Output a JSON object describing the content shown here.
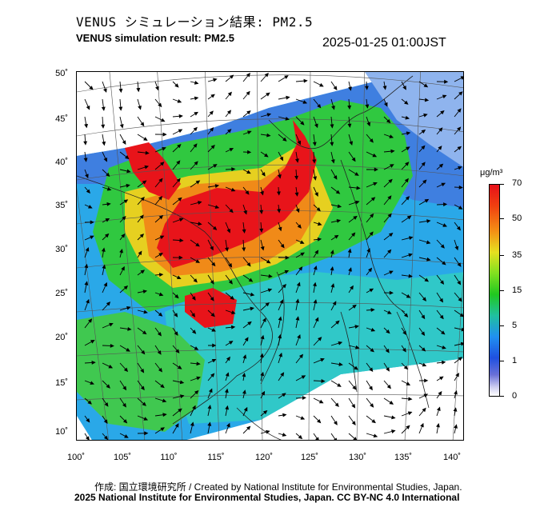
{
  "header": {
    "title_jp": "VENUS シミュレーション結果: PM2.5",
    "title_en": "VENUS simulation result: PM2.5",
    "timestamp": "2025-01-25 01:00JST"
  },
  "map": {
    "lat_labels": [
      "50˚",
      "45˚",
      "40˚",
      "35˚",
      "30˚",
      "25˚",
      "20˚",
      "15˚",
      "10˚"
    ],
    "lon_labels": [
      "100˚",
      "105˚",
      "110˚",
      "115˚",
      "120˚",
      "125˚",
      "130˚",
      "135˚",
      "140˚"
    ]
  },
  "colorbar": {
    "unit": "μg/m³",
    "labels": [
      "70",
      "50",
      "35",
      "15",
      "5",
      "1",
      "0"
    ],
    "colors": [
      "#e8101a",
      "#f49015",
      "#e6e020",
      "#20c820",
      "#2090f0",
      "#1f50e0",
      "#ffffff"
    ]
  },
  "footer": {
    "credit_line1": "作成: 国立環境研究所 / Created by National Institute for Environmental Studies, Japan.",
    "credit_line2": "2025 National Institute for Environmental Studies, Japan. CC BY-NC 4.0 International"
  }
}
